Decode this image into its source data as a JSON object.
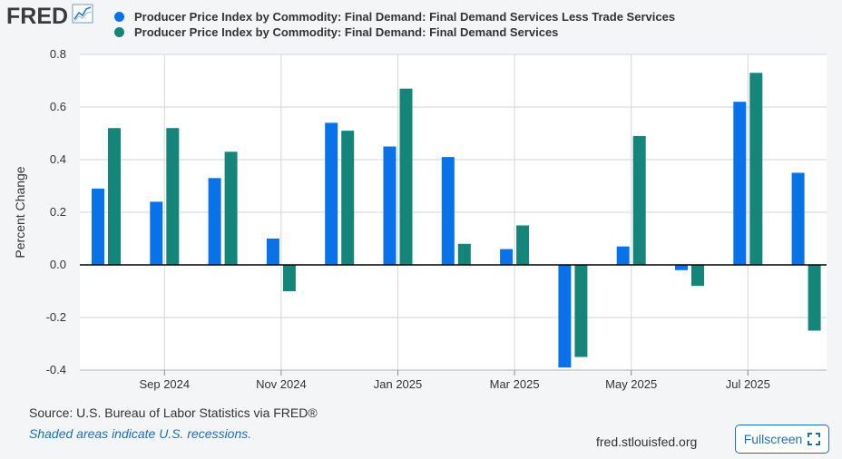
{
  "logo": {
    "text": "FRED",
    "icon": "line-chart-icon"
  },
  "chart_data": {
    "type": "bar",
    "title": "",
    "xlabel": "",
    "ylabel": "Percent Change",
    "ylim": [
      -0.4,
      0.8
    ],
    "yticks": [
      "0.8",
      "0.6",
      "0.4",
      "0.2",
      "0.0",
      "-0.2",
      "-0.4"
    ],
    "ytick_values": [
      0.8,
      0.6,
      0.4,
      0.2,
      0.0,
      -0.2,
      -0.4
    ],
    "categories": [
      "2024-08",
      "2024-09",
      "2024-10",
      "2024-11",
      "2024-12",
      "2025-01",
      "2025-02",
      "2025-03",
      "2025-04",
      "2025-05",
      "2025-06",
      "2025-07",
      "2025-08"
    ],
    "xtick_labels": [
      {
        "category": "2024-09",
        "label": "Sep 2024"
      },
      {
        "category": "2024-11",
        "label": "Nov 2024"
      },
      {
        "category": "2025-01",
        "label": "Jan 2025"
      },
      {
        "category": "2025-03",
        "label": "Mar 2025"
      },
      {
        "category": "2025-05",
        "label": "May 2025"
      },
      {
        "category": "2025-07",
        "label": "Jul 2025"
      }
    ],
    "series": [
      {
        "name": "Producer Price Index by Commodity: Final Demand: Final Demand Services Less Trade Services",
        "color": "#0a72e8",
        "values": [
          0.29,
          0.24,
          0.33,
          0.1,
          0.54,
          0.45,
          0.41,
          0.06,
          -0.39,
          0.07,
          -0.02,
          0.62,
          0.35
        ]
      },
      {
        "name": "Producer Price Index by Commodity: Final Demand: Final Demand Services",
        "color": "#15857a",
        "values": [
          0.52,
          0.52,
          0.43,
          -0.1,
          0.51,
          0.67,
          0.08,
          0.15,
          -0.35,
          0.49,
          -0.08,
          0.73,
          -0.25
        ]
      }
    ],
    "grid": true,
    "legend_position": "top"
  },
  "footer": {
    "source": "Source: U.S. Bureau of Labor Statistics via FRED®",
    "shaded": "Shaded areas indicate U.S. recessions.",
    "url": "fred.stlouisfed.org",
    "fullscreen_label": "Fullscreen"
  }
}
